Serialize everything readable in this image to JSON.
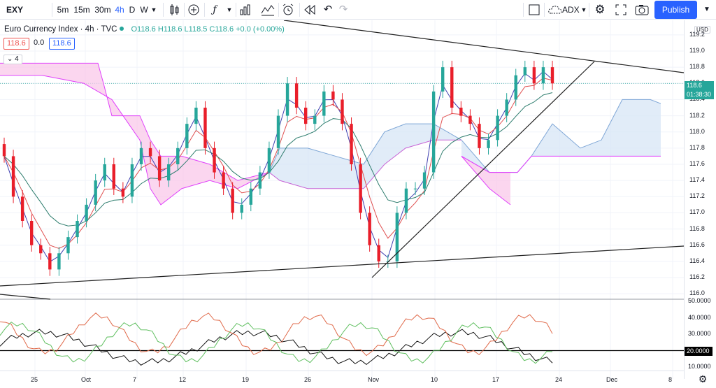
{
  "toolbar": {
    "symbol": "EXY",
    "intervals": [
      "5m",
      "15m",
      "30m",
      "4h",
      "D",
      "W"
    ],
    "active_interval": "4h",
    "indicator_name": "ADX",
    "publish_label": "Publish"
  },
  "legend": {
    "title": "Euro Currency Index · 4h · TVC",
    "ohlc": "O118.6 H118.6 L118.5 C118.6 +0.0 (+0.00%)",
    "price_box_1": "118.6",
    "price_box_2": "0.0",
    "price_box_3": "118.6",
    "indicator_count": "4"
  },
  "price_axis": {
    "currency": "USD",
    "ticks": [
      "119.2",
      "119.0",
      "118.8",
      "118.6",
      "118.4",
      "118.2",
      "118.0",
      "117.8",
      "117.6",
      "117.4",
      "117.2",
      "117.0",
      "116.8",
      "116.6",
      "116.4",
      "116.2",
      "116.0"
    ],
    "last_price": "118.6",
    "countdown": "01:38:30"
  },
  "adx_axis": {
    "ticks": [
      "50.0000",
      "40.0000",
      "30.0000",
      "10.0000"
    ],
    "level": "20.0000"
  },
  "time_axis": [
    "25",
    "Oct",
    "7",
    "12",
    "19",
    "26",
    "Nov",
    "10",
    "17",
    "24",
    "Dec",
    "8"
  ],
  "colors": {
    "up": "#26a69a",
    "down": "#e91e2a",
    "accent": "#2962ff",
    "cloud_bear": "#f8c8e8",
    "cloud_bull": "#cfe2f3"
  },
  "icons": [
    "candles-icon",
    "add-icon",
    "indicators-icon",
    "bar-type-icon",
    "template-icon",
    "alert-icon",
    "replay-icon",
    "undo-icon",
    "redo-icon",
    "layout-icon",
    "cloud-icon",
    "settings-icon",
    "fullscreen-icon",
    "camera-icon"
  ],
  "chart_data": {
    "type": "candlestick",
    "title": "Euro Currency Index · 4h · TVC",
    "ylim": [
      116.0,
      119.3
    ],
    "x_labels": [
      "25",
      "Oct",
      "7",
      "12",
      "19",
      "26",
      "Nov",
      "10",
      "17",
      "24",
      "Dec",
      "8"
    ],
    "close_path": [
      117.7,
      117.2,
      116.9,
      116.6,
      116.5,
      116.3,
      116.5,
      116.7,
      116.9,
      117.1,
      117.4,
      117.6,
      117.3,
      117.2,
      117.6,
      117.8,
      117.7,
      117.4,
      117.6,
      117.8,
      118.1,
      118.3,
      117.8,
      117.5,
      117.3,
      117.0,
      117.1,
      117.3,
      117.5,
      117.8,
      118.2,
      118.6,
      118.3,
      118.1,
      118.2,
      118.5,
      118.4,
      118.1,
      117.6,
      117.0,
      116.6,
      116.4,
      116.4,
      117.0,
      117.3,
      117.3,
      117.5,
      118.5,
      118.8,
      118.3,
      118.2,
      118.1,
      117.8,
      117.9,
      118.2,
      118.4,
      118.7,
      118.8,
      118.6,
      118.8,
      118.6
    ],
    "ichimoku_cloud": true,
    "trendlines": [
      "descending resistance",
      "ascending support",
      "rising support"
    ],
    "adx": {
      "level": 20,
      "ylim": [
        10,
        50
      ]
    }
  }
}
